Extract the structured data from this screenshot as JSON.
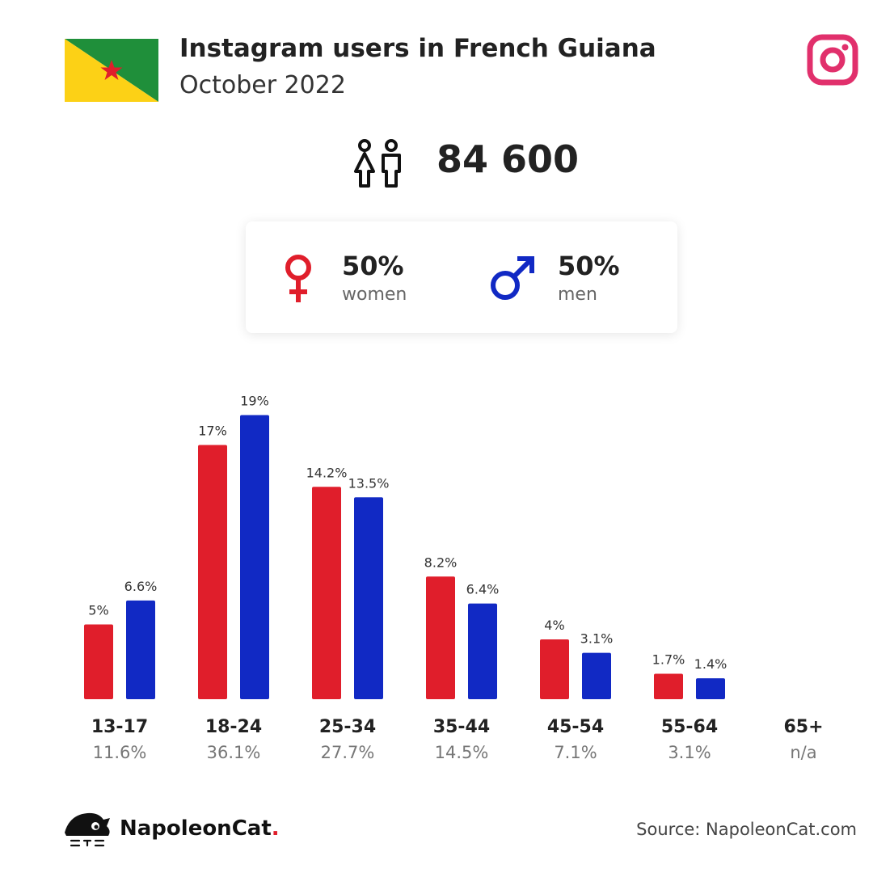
{
  "header": {
    "title": "Instagram users in French Guiana",
    "subtitle": "October 2022"
  },
  "summary": {
    "total_users": "84 600"
  },
  "gender": {
    "women_pct": "50%",
    "women_label": "women",
    "men_pct": "50%",
    "men_label": "men"
  },
  "colors": {
    "women": "#e01e2b",
    "men": "#1129c4",
    "instagram": "#e1306c"
  },
  "icons": [
    "french-guiana-flag",
    "instagram-icon",
    "people-icon",
    "female-symbol-icon",
    "male-symbol-icon",
    "napoleoncat-logo-icon"
  ],
  "chart_data": {
    "type": "bar",
    "categories": [
      "13-17",
      "18-24",
      "25-34",
      "35-44",
      "45-54",
      "55-64",
      "65+"
    ],
    "category_totals": [
      "11.6%",
      "36.1%",
      "27.7%",
      "14.5%",
      "7.1%",
      "3.1%",
      "n/a"
    ],
    "series": [
      {
        "name": "women",
        "values": [
          5,
          17,
          14.2,
          8.2,
          4,
          1.7,
          null
        ],
        "labels": [
          "5%",
          "17%",
          "14.2%",
          "8.2%",
          "4%",
          "1.7%",
          ""
        ]
      },
      {
        "name": "men",
        "values": [
          6.6,
          19,
          13.5,
          6.4,
          3.1,
          1.4,
          null
        ],
        "labels": [
          "6.6%",
          "19%",
          "13.5%",
          "6.4%",
          "3.1%",
          "1.4%",
          ""
        ]
      }
    ],
    "ylim": [
      0,
      20
    ],
    "grid": false,
    "legend": "none"
  },
  "footer": {
    "brand": "NapoleonCat",
    "brand_dot": ".",
    "source": "Source: NapoleonCat.com"
  }
}
